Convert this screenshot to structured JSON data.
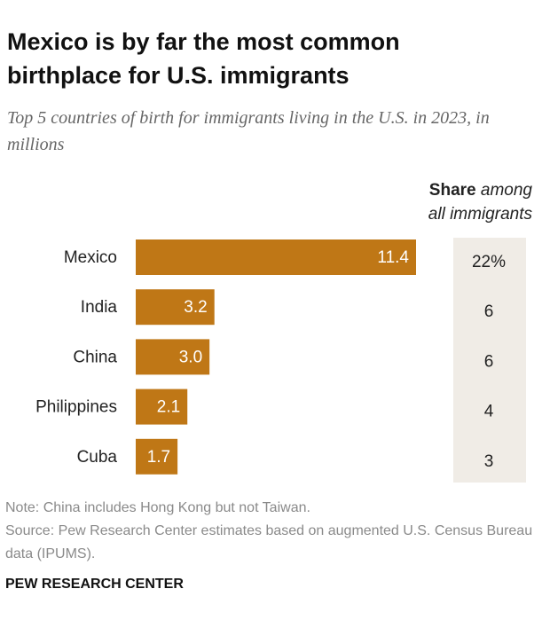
{
  "chart_data": {
    "type": "bar",
    "title": "Mexico is by far the most common birthplace for U.S. immigrants",
    "subtitle": "Top 5 countries of birth for immigrants living in the U.S. in 2023, in millions",
    "categories": [
      "Mexico",
      "India",
      "China",
      "Philippines",
      "Cuba"
    ],
    "values": [
      11.4,
      3.2,
      3.0,
      2.1,
      1.7
    ],
    "value_labels": [
      "11.4",
      "3.2",
      "3.0",
      "2.1",
      "1.7"
    ],
    "color": "#bf7716",
    "share_header": [
      "Share",
      "among",
      "all immigrants"
    ],
    "share_values": [
      22,
      6,
      6,
      4,
      3
    ],
    "share_labels": [
      "22%",
      "6",
      "6",
      "4",
      "3"
    ],
    "note": "Note: China includes Hong Kong but not Taiwan.",
    "source": "Source: Pew Research Center estimates based on augmented U.S. Census Bureau data (IPUMS).",
    "credit": "PEW RESEARCH CENTER"
  }
}
